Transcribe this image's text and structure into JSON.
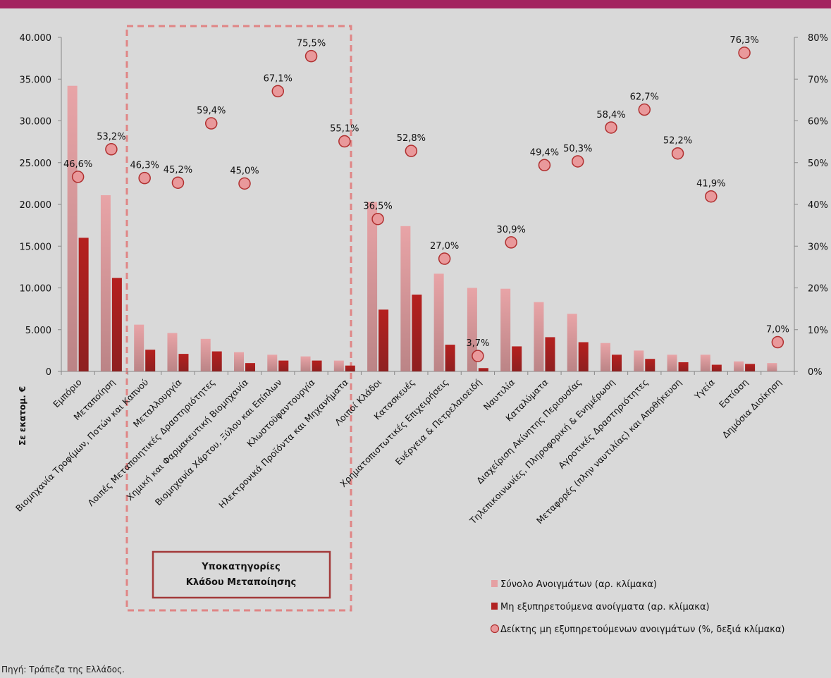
{
  "source": "Πηγή: Τράπεζα της Ελλάδος.",
  "colors": {
    "total": "#e5a0a3",
    "npe": "#b22222",
    "ratio_fill": "#e9999b",
    "ratio_stroke": "#b03030",
    "topbar": "#a3235f",
    "box_border": "#a33a3a"
  },
  "subcategory_box": {
    "line1": "Υποκατηγορίες",
    "line2": "Κλάδου Μεταποίησης"
  },
  "chart_data": {
    "type": "bar",
    "ylabel": "Σε εκατομ. €",
    "ylim": [
      0,
      40000
    ],
    "y2lim": [
      0,
      80
    ],
    "y_ticks": [
      "0",
      "5.000",
      "10.000",
      "15.000",
      "20.000",
      "25.000",
      "30.000",
      "35.000",
      "40.000"
    ],
    "y2_ticks": [
      "0%",
      "10%",
      "20%",
      "30%",
      "40%",
      "50%",
      "60%",
      "70%",
      "80%"
    ],
    "categories": [
      "Εμπόριο",
      "Μεταποίηση",
      "Βιομηχανία Τροφίμων, Ποτών και Καπνού",
      "Μεταλλουργία",
      "Λοιπές Μεταποιητικές Δραστηριότητες",
      "Χημική και Φαρμακευτική Βιομηχανία",
      "Βιομηχανία Χάρτου, Ξύλου και Επίπλων",
      "Κλωστοϋφαντουργία",
      "Ηλεκτρονικά Προϊόντα και Μηχανήματα",
      "Λοιποί Κλάδοι",
      "Κατασκευές",
      "Χρηματοπιστωτικές Επιχειρήσεις",
      "Ενέργεια & Πετρελαιοειδή",
      "Ναυτιλία",
      "Καταλύματα",
      "Διαχείριση Ακίνητης Περιουσίας",
      "Τηλεπικοινωνίες, Πληροφορική & Ενημέρωση",
      "Αγροτικές Δραστηριότητες",
      "Μεταφορές (πλην ναυτιλίας) και Αποθήκευση",
      "Υγεία",
      "Εστίαση",
      "Δημόσια Διοίκηση"
    ],
    "series": [
      {
        "name": "Σύνολο Ανοιγμάτων (αρ. κλίμακα)",
        "values": [
          34200,
          21100,
          5600,
          4600,
          3900,
          2300,
          2000,
          1800,
          1300,
          20300,
          17400,
          11700,
          10000,
          9900,
          8300,
          6900,
          3400,
          2500,
          2000,
          2000,
          1200,
          1000
        ]
      },
      {
        "name": "Μη εξυπηρετούμενα ανοίγματα (αρ. κλίμακα)",
        "values": [
          16000,
          11200,
          2600,
          2100,
          2400,
          1000,
          1300,
          1300,
          700,
          7400,
          9200,
          3200,
          400,
          3000,
          4100,
          3500,
          2000,
          1500,
          1100,
          800,
          900,
          0
        ]
      },
      {
        "name": "Δείκτης μη εξυπηρετούμενων ανοιγμάτων (%, δεξιά κλίμακα)",
        "values": [
          46.6,
          53.2,
          46.3,
          45.2,
          59.4,
          45.0,
          67.1,
          75.5,
          55.1,
          36.5,
          52.8,
          27.0,
          3.7,
          30.9,
          49.4,
          50.3,
          58.4,
          62.7,
          52.2,
          41.9,
          76.3,
          7.0
        ]
      }
    ],
    "ratio_labels": [
      "46,6%",
      "53,2%",
      "46,3%",
      "45,2%",
      "59,4%",
      "45,0%",
      "67,1%",
      "75,5%",
      "55,1%",
      "36,5%",
      "52,8%",
      "27,0%",
      "3,7%",
      "30,9%",
      "49,4%",
      "50,3%",
      "58,4%",
      "62,7%",
      "52,2%",
      "41,9%",
      "76,3%",
      "7,0%"
    ],
    "legend": {
      "placement": "bottom-right",
      "items": [
        "Σύνολο Ανοιγμάτων (αρ. κλίμακα)",
        "Μη εξυπηρετούμενα ανοίγματα (αρ. κλίμακα)",
        "Δείκτης μη εξυπηρετούμενων ανοιγμάτων (%, δεξιά κλίμακα)"
      ]
    }
  }
}
